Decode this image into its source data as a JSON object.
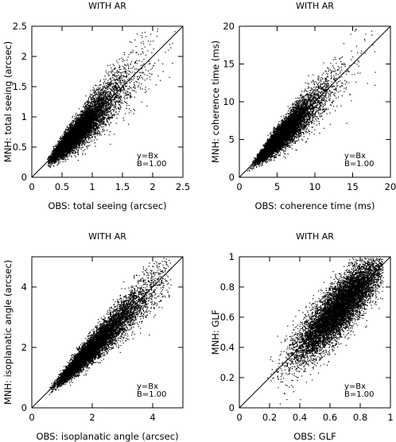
{
  "chart_data": [
    {
      "type": "scatter",
      "title": "WITH AR",
      "xlabel": "OBS: total seeing (arcsec)",
      "ylabel": "MNH: total seeing (arcsec)",
      "xlim": [
        0,
        2.5
      ],
      "ylim": [
        0,
        2.5
      ],
      "xticks": [
        0,
        0.5,
        1,
        1.5,
        2,
        2.5
      ],
      "xtick_labels": [
        "0",
        "0.5",
        "1",
        "1.5",
        "2",
        "2.5"
      ],
      "yticks": [
        0,
        0.5,
        1,
        1.5,
        2,
        2.5
      ],
      "ytick_labels": [
        "0",
        "0.5",
        "1",
        "1.5",
        "2",
        "2.5"
      ],
      "fit_line": {
        "slope": 1.0,
        "intercept": 0
      },
      "annotation": [
        "y=Bx",
        "B=1.00"
      ],
      "cloud": {
        "x_range": [
          0.25,
          2.45
        ],
        "x_mode": 0.75,
        "y_over_x_spread": 0.16,
        "approx_points": 9000
      },
      "grid": false,
      "legend": "none"
    },
    {
      "type": "scatter",
      "title": "WITH AR",
      "xlabel": "OBS: coherence time (ms)",
      "ylabel": "MNH: coherence time (ms)",
      "xlim": [
        0,
        20
      ],
      "ylim": [
        0,
        20
      ],
      "xticks": [
        0,
        5,
        10,
        15,
        20
      ],
      "xtick_labels": [
        "0",
        "5",
        "10",
        "15",
        "20"
      ],
      "yticks": [
        0,
        5,
        10,
        15,
        20
      ],
      "ytick_labels": [
        "0",
        "5",
        "10",
        "15",
        "20"
      ],
      "fit_line": {
        "slope": 1.0,
        "intercept": 0
      },
      "annotation": [
        "y=Bx",
        "B=1.00"
      ],
      "cloud": {
        "x_range": [
          0.8,
          19.5
        ],
        "x_mode": 5.5,
        "y_over_x_spread": 0.15,
        "approx_points": 9000
      },
      "grid": false,
      "legend": "none"
    },
    {
      "type": "scatter",
      "title": "WITH AR",
      "xlabel": "OBS: isoplanatic angle (arcsec)",
      "ylabel": "MNH: isoplanatic angle (arcsec)",
      "xlim": [
        0,
        5
      ],
      "ylim": [
        0,
        5
      ],
      "xticks": [
        0,
        2,
        4
      ],
      "xtick_labels": [
        "0",
        "2",
        "4"
      ],
      "yticks": [
        0,
        2,
        4
      ],
      "ytick_labels": [
        "0",
        "2",
        "4"
      ],
      "fit_line": {
        "slope": 1.0,
        "intercept": 0
      },
      "annotation": [
        "y=Bx",
        "B=1.00"
      ],
      "cloud": {
        "x_range": [
          0.5,
          4.6
        ],
        "x_mode": 2.0,
        "y_over_x_spread": 0.11,
        "approx_points": 9000
      },
      "grid": false,
      "legend": "none"
    },
    {
      "type": "scatter",
      "title": "WITH AR",
      "xlabel": "OBS: GLF",
      "ylabel": "MNH: GLF",
      "xlim": [
        0,
        1
      ],
      "ylim": [
        0,
        1
      ],
      "xticks": [
        0,
        0.2,
        0.4,
        0.6,
        0.8,
        1
      ],
      "xtick_labels": [
        "0",
        "0.2",
        "0.4",
        "0.6",
        "0.8",
        "1"
      ],
      "yticks": [
        0,
        0.2,
        0.4,
        0.6,
        0.8,
        1
      ],
      "ytick_labels": [
        "0",
        "0.2",
        "0.4",
        "0.6",
        "0.8",
        "1"
      ],
      "fit_line": {
        "slope": 1.0,
        "intercept": 0
      },
      "annotation": [
        "y=Bx",
        "B=1.00"
      ],
      "cloud": {
        "x_range": [
          0.08,
          0.95
        ],
        "x_mode": 0.7,
        "y_over_x_spread": 0.12,
        "approx_points": 9000
      },
      "grid": false,
      "legend": "none"
    }
  ]
}
